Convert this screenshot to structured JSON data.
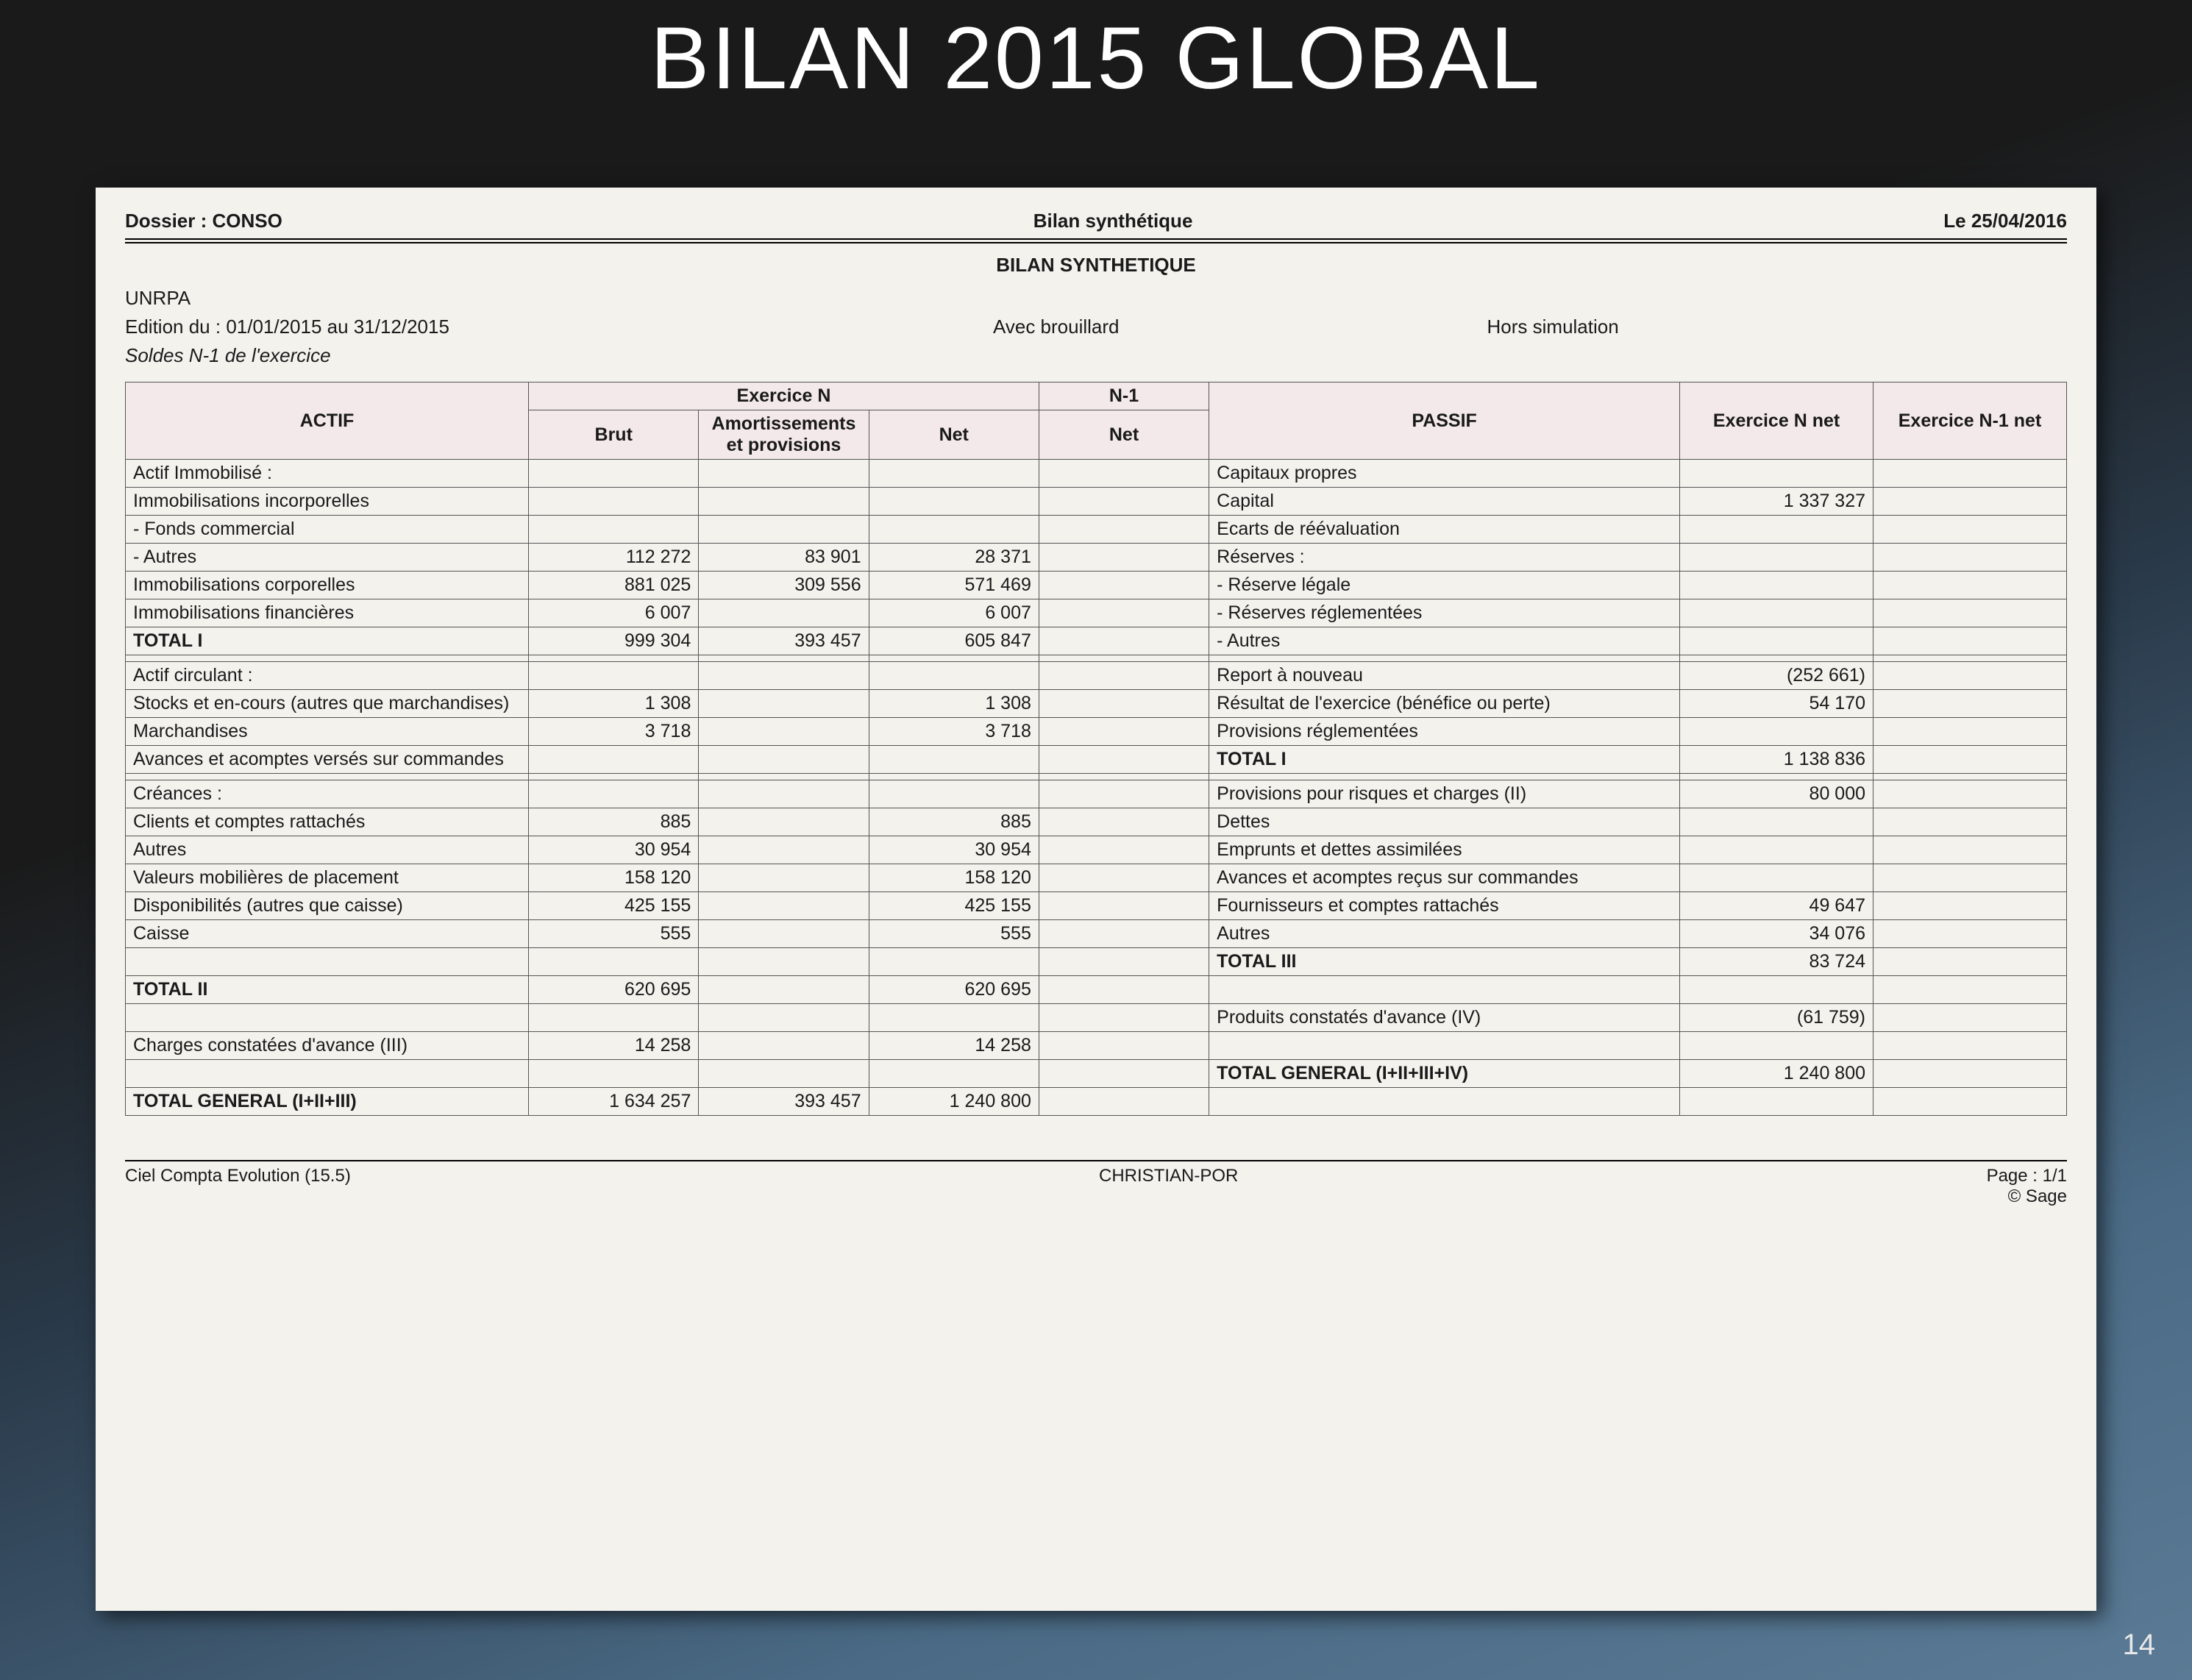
{
  "slide": {
    "title": "BILAN 2015 GLOBAL",
    "page_number": "14",
    "bg_gradient_from": "#1a1a1a",
    "bg_gradient_to": "#5a7a95"
  },
  "doc": {
    "dossier_label": "Dossier : CONSO",
    "center_title": "Bilan synthétique",
    "date_label": "Le 25/04/2016",
    "subtitle": "BILAN SYNTHETIQUE",
    "org": "UNRPA",
    "edition": "Edition du : 01/01/2015 au 31/12/2015",
    "avec": "Avec brouillard",
    "hors": "Hors simulation",
    "soldes": "Soldes N-1 de l'exercice",
    "header_bg": "#f3e8ea",
    "paper_bg": "#f3f2ed"
  },
  "table": {
    "headers": {
      "actif": "ACTIF",
      "exerciceN": "Exercice N",
      "brut": "Brut",
      "amort": "Amortissements et provisions",
      "net": "Net",
      "n1": "N-1",
      "n1net": "Net",
      "passif": "PASSIF",
      "exnNet": "Exercice N net",
      "exn1Net": "Exercice N-1 net"
    },
    "actif": [
      {
        "label": "Actif Immobilisé :",
        "b": "",
        "a": "",
        "n": "",
        "n1": "",
        "cls": ""
      },
      {
        "label": "Immobilisations incorporelles",
        "b": "",
        "a": "",
        "n": "",
        "n1": "",
        "cls": "ind1"
      },
      {
        "label": "- Fonds commercial",
        "b": "",
        "a": "",
        "n": "",
        "n1": "",
        "cls": "ind1"
      },
      {
        "label": "- Autres",
        "b": "112 272",
        "a": "83 901",
        "n": "28 371",
        "n1": "",
        "cls": "ind1"
      },
      {
        "label": "Immobilisations corporelles",
        "b": "881 025",
        "a": "309 556",
        "n": "571 469",
        "n1": "",
        "cls": "ind1"
      },
      {
        "label": "Immobilisations financières",
        "b": "6 007",
        "a": "",
        "n": "6 007",
        "n1": "",
        "cls": "ind1"
      },
      {
        "label": "TOTAL I",
        "b": "999 304",
        "a": "393 457",
        "n": "605 847",
        "n1": "",
        "cls": "ind2 bold"
      },
      {
        "label": "",
        "b": "",
        "a": "",
        "n": "",
        "n1": "",
        "cls": ""
      },
      {
        "label": "Actif circulant :",
        "b": "",
        "a": "",
        "n": "",
        "n1": "",
        "cls": ""
      },
      {
        "label": "Stocks et en-cours (autres que marchandises)",
        "b": "1 308",
        "a": "",
        "n": "1 308",
        "n1": "",
        "cls": "ind1 wrap-cell"
      },
      {
        "label": "Marchandises",
        "b": "3 718",
        "a": "",
        "n": "3 718",
        "n1": "",
        "cls": "ind1"
      },
      {
        "label": "Avances et acomptes versés sur commandes",
        "b": "",
        "a": "",
        "n": "",
        "n1": "",
        "cls": "ind1 wrap-cell"
      },
      {
        "label": "",
        "b": "",
        "a": "",
        "n": "",
        "n1": "",
        "cls": ""
      },
      {
        "label": "Créances :",
        "b": "",
        "a": "",
        "n": "",
        "n1": "",
        "cls": ""
      },
      {
        "label": "Clients et comptes rattachés",
        "b": "885",
        "a": "",
        "n": "885",
        "n1": "",
        "cls": "ind1"
      },
      {
        "label": "Autres",
        "b": "30 954",
        "a": "",
        "n": "30 954",
        "n1": "",
        "cls": "ind1"
      },
      {
        "label": "Valeurs mobilières de placement",
        "b": "158 120",
        "a": "",
        "n": "158 120",
        "n1": "",
        "cls": ""
      },
      {
        "label": "Disponibilités (autres que caisse)",
        "b": "425 155",
        "a": "",
        "n": "425 155",
        "n1": "",
        "cls": ""
      },
      {
        "label": "Caisse",
        "b": "555",
        "a": "",
        "n": "555",
        "n1": "",
        "cls": ""
      },
      {
        "label": "",
        "b": "",
        "a": "",
        "n": "",
        "n1": "",
        "cls": ""
      },
      {
        "label": "TOTAL II",
        "b": "620 695",
        "a": "",
        "n": "620 695",
        "n1": "",
        "cls": "ind2 bold"
      },
      {
        "label": "",
        "b": "",
        "a": "",
        "n": "",
        "n1": "",
        "cls": ""
      },
      {
        "label": "Charges constatées d'avance (III)",
        "b": "14 258",
        "a": "",
        "n": "14 258",
        "n1": "",
        "cls": ""
      },
      {
        "label": "",
        "b": "",
        "a": "",
        "n": "",
        "n1": "",
        "cls": ""
      },
      {
        "label": "TOTAL GENERAL (I+II+III)",
        "b": "1 634 257",
        "a": "393 457",
        "n": "1 240 800",
        "n1": "",
        "cls": "bold"
      }
    ],
    "passif": [
      {
        "label": "Capitaux propres",
        "v": "",
        "v1": "",
        "cls": ""
      },
      {
        "label": "Capital",
        "v": "1 337 327",
        "v1": "",
        "cls": "ind1"
      },
      {
        "label": "Ecarts de réévaluation",
        "v": "",
        "v1": "",
        "cls": "ind1"
      },
      {
        "label": "Réserves :",
        "v": "",
        "v1": "",
        "cls": "ind1"
      },
      {
        "label": "- Réserve légale",
        "v": "",
        "v1": "",
        "cls": "ind1"
      },
      {
        "label": "- Réserves réglementées",
        "v": "",
        "v1": "",
        "cls": "ind1"
      },
      {
        "label": "- Autres",
        "v": "",
        "v1": "",
        "cls": "ind1"
      },
      {
        "label": "",
        "v": "",
        "v1": "",
        "cls": ""
      },
      {
        "label": "Report à nouveau",
        "v": "(252 661)",
        "v1": "",
        "cls": "ind1"
      },
      {
        "label": "Résultat de l'exercice (bénéfice ou perte)",
        "v": "54 170",
        "v1": "",
        "cls": "ind1"
      },
      {
        "label": "Provisions réglementées",
        "v": "",
        "v1": "",
        "cls": "ind1"
      },
      {
        "label": "TOTAL I",
        "v": "1 138 836",
        "v1": "",
        "cls": "ind2 bold"
      },
      {
        "label": "",
        "v": "",
        "v1": "",
        "cls": ""
      },
      {
        "label": "Provisions pour risques et charges (II)",
        "v": "80 000",
        "v1": "",
        "cls": ""
      },
      {
        "label": "Dettes",
        "v": "",
        "v1": "",
        "cls": ""
      },
      {
        "label": "Emprunts et dettes assimilées",
        "v": "",
        "v1": "",
        "cls": "ind1"
      },
      {
        "label": "Avances et acomptes reçus sur commandes",
        "v": "",
        "v1": "",
        "cls": "ind1 wrap-cell"
      },
      {
        "label": "Fournisseurs et comptes rattachés",
        "v": "49 647",
        "v1": "",
        "cls": "ind1"
      },
      {
        "label": "Autres",
        "v": "34 076",
        "v1": "",
        "cls": "ind1"
      },
      {
        "label": "TOTAL III",
        "v": "83 724",
        "v1": "",
        "cls": "ind2 bold"
      },
      {
        "label": "",
        "v": "",
        "v1": "",
        "cls": ""
      },
      {
        "label": "Produits constatés d'avance (IV)",
        "v": "(61 759)",
        "v1": "",
        "cls": ""
      },
      {
        "label": "",
        "v": "",
        "v1": "",
        "cls": ""
      },
      {
        "label": "TOTAL GENERAL (I+II+III+IV)",
        "v": "1 240 800",
        "v1": "",
        "cls": "bold"
      },
      {
        "label": "",
        "v": "",
        "v1": "",
        "cls": ""
      }
    ]
  },
  "footer": {
    "left": "Ciel Compta Evolution (15.5)",
    "center": "CHRISTIAN-POR",
    "page": "Page : 1/1",
    "sage": "© Sage"
  }
}
